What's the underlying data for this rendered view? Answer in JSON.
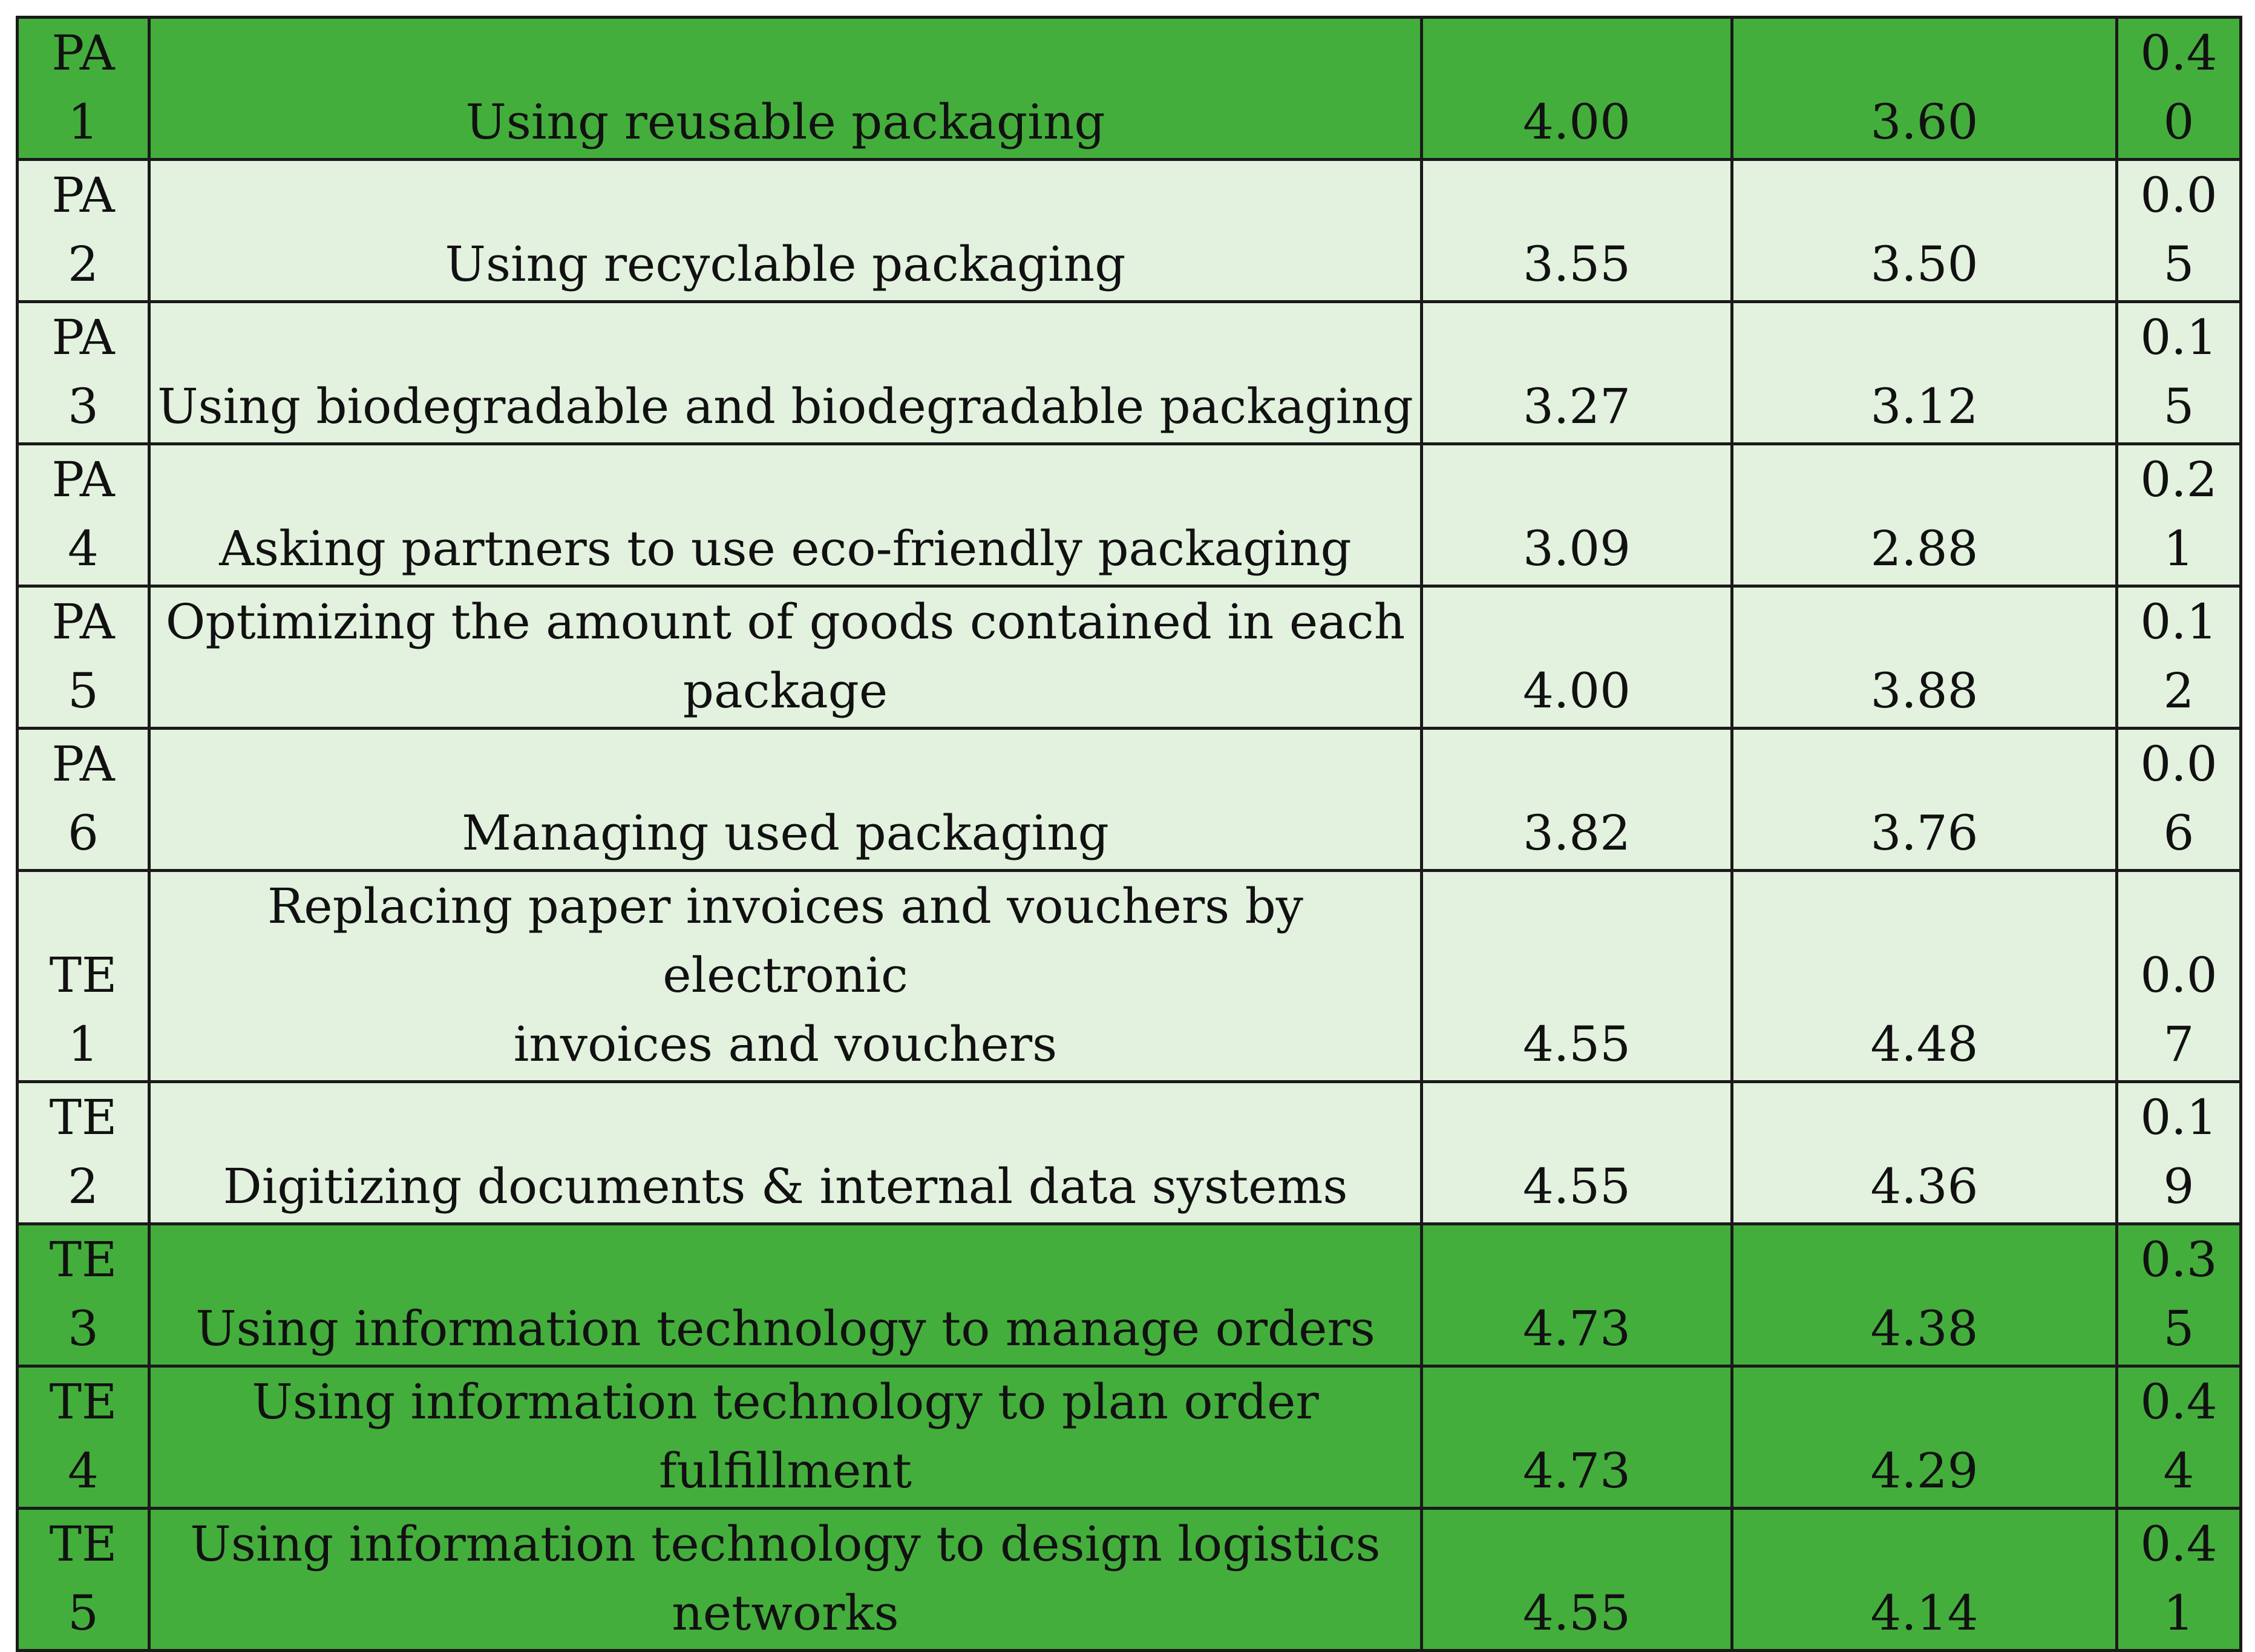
{
  "colors": {
    "highlight_row": "#44ae3c",
    "normal_row": "#e3f1df",
    "border": "#1a1a1a"
  },
  "rows": [
    {
      "code": [
        "PA",
        "1"
      ],
      "description": [
        "Using reusable packaging"
      ],
      "value_a": "4.00",
      "value_b": "3.60",
      "diff": [
        "0.4",
        "0"
      ],
      "highlight": true
    },
    {
      "code": [
        "PA",
        "2"
      ],
      "description": [
        "Using recyclable packaging"
      ],
      "value_a": "3.55",
      "value_b": "3.50",
      "diff": [
        "0.0",
        "5"
      ],
      "highlight": false
    },
    {
      "code": [
        "PA",
        "3"
      ],
      "description": [
        "Using biodegradable and biodegradable packaging"
      ],
      "value_a": "3.27",
      "value_b": "3.12",
      "diff": [
        "0.1",
        "5"
      ],
      "highlight": false
    },
    {
      "code": [
        "PA",
        "4"
      ],
      "description": [
        "Asking partners to use eco-friendly packaging"
      ],
      "value_a": "3.09",
      "value_b": "2.88",
      "diff": [
        "0.2",
        "1"
      ],
      "highlight": false
    },
    {
      "code": [
        "PA",
        "5"
      ],
      "description": [
        "Optimizing the amount of goods contained in each",
        "package"
      ],
      "value_a": "4.00",
      "value_b": "3.88",
      "diff": [
        "0.1",
        "2"
      ],
      "highlight": false
    },
    {
      "code": [
        "PA",
        "6"
      ],
      "description": [
        "Managing used packaging"
      ],
      "value_a": "3.82",
      "value_b": "3.76",
      "diff": [
        "0.0",
        "6"
      ],
      "highlight": false
    },
    {
      "code": [
        "TE",
        "1"
      ],
      "description": [
        "Replacing paper invoices and vouchers by electronic",
        "invoices and vouchers"
      ],
      "value_a": "4.55",
      "value_b": "4.48",
      "diff": [
        "0.0",
        "7"
      ],
      "highlight": false
    },
    {
      "code": [
        "TE",
        "2"
      ],
      "description": [
        "Digitizing documents & internal data systems"
      ],
      "value_a": "4.55",
      "value_b": "4.36",
      "diff": [
        "0.1",
        "9"
      ],
      "highlight": false
    },
    {
      "code": [
        "TE",
        "3"
      ],
      "description": [
        "Using information technology to manage orders"
      ],
      "value_a": "4.73",
      "value_b": "4.38",
      "diff": [
        "0.3",
        "5"
      ],
      "highlight": true
    },
    {
      "code": [
        "TE",
        "4"
      ],
      "description": [
        "Using information technology to plan order",
        "fulfillment"
      ],
      "value_a": "4.73",
      "value_b": "4.29",
      "diff": [
        "0.4",
        "4"
      ],
      "highlight": true
    },
    {
      "code": [
        "TE",
        "5"
      ],
      "description": [
        "Using information technology to design logistics",
        "networks"
      ],
      "value_a": "4.55",
      "value_b": "4.14",
      "diff": [
        "0.4",
        "1"
      ],
      "highlight": true
    }
  ]
}
